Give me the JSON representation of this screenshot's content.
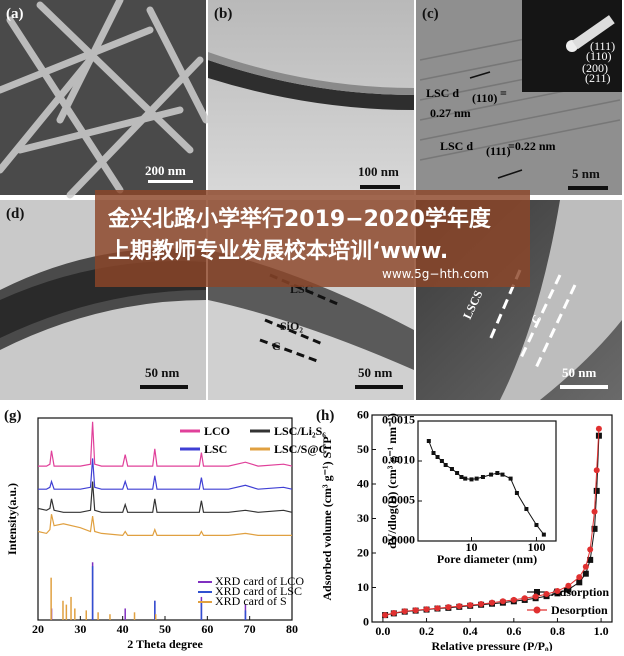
{
  "panels": {
    "a": {
      "label": "(a)",
      "scale": "200 nm"
    },
    "b": {
      "label": "(b)",
      "scale": "100 nm"
    },
    "c": {
      "label": "(c)",
      "scale": "5 nm",
      "d1": [
        "LSC d",
        "(110)",
        "=",
        "0.27 nm"
      ],
      "d2": [
        "LSC d",
        "(111)",
        "=0.22 nm"
      ],
      "saed": [
        "(111)",
        "(110)",
        "(200)",
        "(211)"
      ]
    },
    "d": {
      "label": "(d)",
      "scale": "50 nm"
    },
    "e": {
      "scale": "50 nm",
      "layers": [
        "LSC",
        "SiO₂",
        "C"
      ]
    },
    "f": {
      "scale": "50 nm",
      "layers": [
        "LSCS",
        "C"
      ]
    },
    "g": {
      "label": "(g)"
    },
    "h": {
      "label": "(h)"
    }
  },
  "banner": {
    "line1": "金兴北路小学举行2019−2020学年度",
    "line2": "上期教师专业发展校本培训‘www.",
    "url": "www.5g−hth.com"
  },
  "chart_data": [
    {
      "type": "line",
      "x_label": "2 Theta degree",
      "y_label": "Intensity(a.u.)",
      "xlim": [
        20,
        80
      ],
      "xticks": [
        20,
        30,
        40,
        50,
        60,
        70,
        80
      ],
      "ylim": [
        0,
        105
      ],
      "x": [
        20,
        22,
        22.8,
        23.2,
        23.8,
        26,
        30,
        32.4,
        32.9,
        33.4,
        35,
        40,
        40.6,
        41.2,
        45,
        47.1,
        47.6,
        48.1,
        52,
        58.1,
        58.6,
        59.1,
        65,
        69,
        72,
        78,
        80
      ],
      "series": [
        {
          "name": "LCO",
          "color": "#e0409a",
          "values": [
            80,
            80,
            81,
            88,
            80,
            80,
            80,
            81,
            103,
            81,
            80,
            80,
            86,
            80,
            80,
            80,
            89,
            80,
            80,
            80,
            87,
            80,
            80,
            82,
            80,
            81,
            80
          ]
        },
        {
          "name": "LSC",
          "color": "#3f3fd4",
          "values": [
            68,
            68,
            69,
            72,
            68,
            68,
            68,
            69,
            84,
            69,
            68,
            68,
            72,
            68,
            68,
            68,
            75,
            68,
            68,
            68,
            74,
            68,
            68,
            70,
            68,
            69,
            68
          ]
        },
        {
          "name": "LSC/Li₂S₆",
          "color": "#333333",
          "values": [
            58,
            57,
            58,
            63,
            57,
            56,
            56,
            57,
            72,
            57,
            56,
            56,
            60,
            56,
            56,
            56,
            63,
            56,
            56,
            56,
            62,
            56,
            56,
            57,
            56,
            57,
            56
          ]
        },
        {
          "name": "LSC/S@C",
          "color": "#e0a040",
          "values": [
            46,
            45,
            47,
            55,
            49,
            50,
            48,
            46,
            54,
            46,
            45,
            44,
            46,
            44,
            44,
            44,
            47,
            44,
            44,
            44,
            46,
            44,
            44,
            45,
            44,
            44,
            44
          ]
        }
      ],
      "cards": [
        {
          "name": "XRD card of LCO",
          "color": "#8030c0",
          "x": [
            23.2,
            32.9,
            40.6,
            47.6,
            58.6,
            69
          ],
          "values": [
            6,
            30,
            6,
            10,
            12,
            8
          ]
        },
        {
          "name": "XRD card of LSC",
          "color": "#3050d0",
          "x": [
            32.9,
            47.6,
            58.6,
            69
          ],
          "values": [
            28,
            10,
            10,
            5
          ]
        },
        {
          "name": "XRD card of S",
          "color": "#e0a040",
          "x": [
            23.1,
            25.9,
            26.7,
            27.8,
            28.7,
            31.4,
            34.2,
            37,
            42.8,
            47.8
          ],
          "values": [
            22,
            10,
            8,
            12,
            6,
            5,
            4,
            3,
            4,
            3
          ]
        }
      ]
    },
    {
      "type": "scatter",
      "x_label": "Relative pressure (P/P₀)",
      "y_label": "Adsorbed volume (cm³ g⁻¹) STP",
      "xlim": [
        -0.05,
        1.05
      ],
      "xticks": [
        {
          "value": 0,
          "label": "0.0"
        },
        0.2,
        0.4,
        0.6,
        0.8,
        {
          "value": 1,
          "label": "1.0"
        }
      ],
      "ylim": [
        0,
        60
      ],
      "yticks": [
        0,
        10,
        20,
        30,
        40,
        50,
        60
      ],
      "legend": "lower right",
      "series": [
        {
          "name": "Adsorption",
          "color": "#111111",
          "marker": "square",
          "x": [
            0.01,
            0.05,
            0.1,
            0.15,
            0.2,
            0.25,
            0.3,
            0.35,
            0.4,
            0.45,
            0.5,
            0.55,
            0.6,
            0.65,
            0.7,
            0.75,
            0.8,
            0.85,
            0.9,
            0.93,
            0.95,
            0.97,
            0.98,
            0.99
          ],
          "values": [
            2.0,
            2.5,
            3.0,
            3.3,
            3.6,
            3.9,
            4.1,
            4.4,
            4.7,
            5.0,
            5.3,
            5.6,
            6.0,
            6.4,
            6.9,
            7.5,
            8.3,
            9.4,
            11.5,
            14,
            18,
            27,
            38,
            54
          ]
        },
        {
          "name": "Desorption",
          "color": "#e03030",
          "marker": "circle",
          "x": [
            0.01,
            0.05,
            0.1,
            0.15,
            0.2,
            0.25,
            0.3,
            0.35,
            0.4,
            0.45,
            0.5,
            0.55,
            0.6,
            0.65,
            0.7,
            0.75,
            0.8,
            0.85,
            0.9,
            0.93,
            0.95,
            0.97,
            0.98,
            0.99
          ],
          "values": [
            2.0,
            2.6,
            3.1,
            3.4,
            3.7,
            4.0,
            4.3,
            4.6,
            4.9,
            5.2,
            5.6,
            6.0,
            6.4,
            6.9,
            7.4,
            8.1,
            9.0,
            10.5,
            13,
            16,
            21,
            32,
            44,
            56
          ]
        }
      ]
    },
    {
      "type": "scatter",
      "x_label": "Pore diameter (nm)",
      "y_label": "dV/dlog(D) (cm³ g⁻¹ nm⁻¹)",
      "xscale": "log",
      "xlim": [
        1.5,
        200
      ],
      "xticks": [
        10,
        100
      ],
      "ylim": [
        0,
        0.0015
      ],
      "yticks": [
        {
          "value": 0,
          "label": "0.0000"
        },
        0.0005,
        {
          "value": 0.001,
          "label": "0.0010"
        },
        0.0015
      ],
      "series": [
        {
          "color": "#111111",
          "marker": "square",
          "x": [
            2.2,
            2.6,
            3,
            3.5,
            4,
            5,
            6,
            7,
            8,
            10,
            12,
            15,
            20,
            25,
            30,
            40,
            50,
            70,
            100,
            130
          ],
          "values": [
            0.00125,
            0.0011,
            0.00105,
            0.001,
            0.00095,
            0.0009,
            0.00085,
            0.0008,
            0.00078,
            0.00077,
            0.00078,
            0.0008,
            0.00083,
            0.00085,
            0.00083,
            0.00078,
            0.0006,
            0.0004,
            0.0002,
            8e-05
          ]
        }
      ]
    }
  ]
}
